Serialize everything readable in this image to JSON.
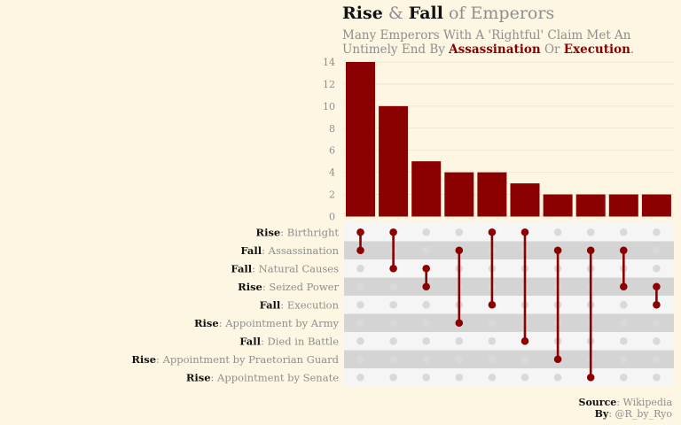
{
  "header": {
    "title_rise": "Rise",
    "title_amp": " & ",
    "title_fall": "Fall",
    "title_rest": " of Emperors",
    "subtitle_part1": "Many Emperors With A 'Rightful' Claim Met An Untimely End By ",
    "subtitle_hl1": "Assassination",
    "subtitle_mid": " Or ",
    "subtitle_hl2": "Execution",
    "subtitle_end": "."
  },
  "caption": {
    "source_label": "Source",
    "source_value": ": Wikipedia",
    "by_label": "By",
    "by_value": ": @R_by_Ryo"
  },
  "colors": {
    "bar": "#8b0000",
    "dot_active": "#8b0000",
    "dot_inactive": "#d9d9d9",
    "stripe_dark": "#d4d4d4",
    "stripe_light": "#f5f5f5",
    "background": "#fdf6e3"
  },
  "chart_data": {
    "type": "bar",
    "subtype": "upset",
    "y_ticks": [
      0,
      2,
      4,
      6,
      8,
      10,
      12,
      14
    ],
    "ylim": [
      0,
      14
    ],
    "grid": true,
    "sets": [
      {
        "prefix": "Rise",
        "label": ": Birthright"
      },
      {
        "prefix": "Fall",
        "label": ": Assassination"
      },
      {
        "prefix": "Fall",
        "label": ": Natural Causes"
      },
      {
        "prefix": "Rise",
        "label": ": Seized Power"
      },
      {
        "prefix": "Fall",
        "label": ": Execution"
      },
      {
        "prefix": "Rise",
        "label": ": Appointment by Army"
      },
      {
        "prefix": "Fall",
        "label": ": Died in Battle"
      },
      {
        "prefix": "Rise",
        "label": ": Appointment by Praetorian Guard"
      },
      {
        "prefix": "Rise",
        "label": ": Appointment by Senate"
      }
    ],
    "intersections": [
      {
        "value": 14,
        "members": [
          0,
          1
        ]
      },
      {
        "value": 10,
        "members": [
          0,
          2
        ]
      },
      {
        "value": 5,
        "members": [
          2,
          3
        ]
      },
      {
        "value": 4,
        "members": [
          1,
          5
        ]
      },
      {
        "value": 4,
        "members": [
          0,
          4
        ]
      },
      {
        "value": 3,
        "members": [
          0,
          6
        ]
      },
      {
        "value": 2,
        "members": [
          1,
          7
        ]
      },
      {
        "value": 2,
        "members": [
          1,
          8
        ]
      },
      {
        "value": 2,
        "members": [
          1,
          3
        ]
      },
      {
        "value": 2,
        "members": [
          3,
          4
        ]
      }
    ]
  }
}
